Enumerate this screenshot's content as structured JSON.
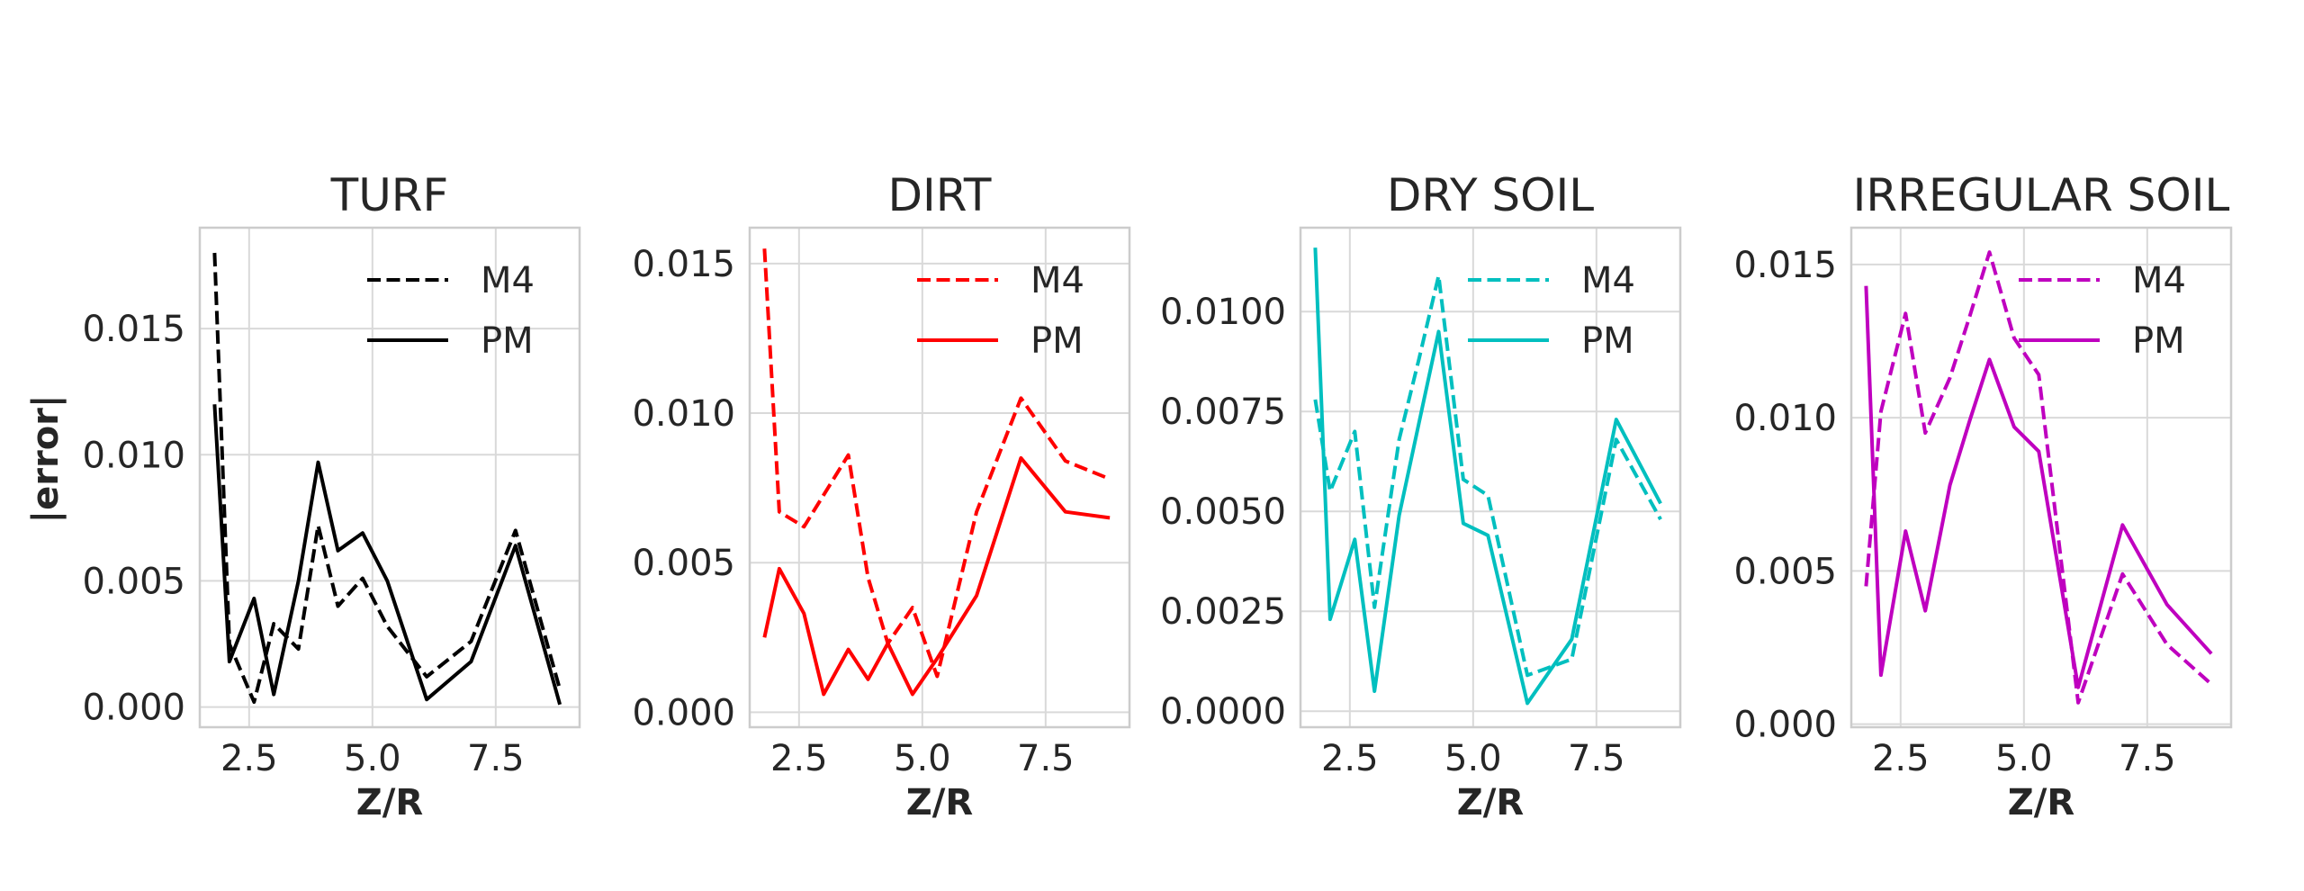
{
  "ylabel": "|error|",
  "chart_data": [
    {
      "type": "line",
      "title": "TURF",
      "xlabel": "Z/R",
      "color": "#000000",
      "xlim": [
        1.5,
        9.2
      ],
      "ylim": [
        -0.0008,
        0.019
      ],
      "xticks": [
        2.5,
        5.0,
        7.5
      ],
      "xticklabels": [
        "2.5",
        "5.0",
        "7.5"
      ],
      "yticks": [
        0.0,
        0.005,
        0.01,
        0.015
      ],
      "yticklabels": [
        "0.000",
        "0.005",
        "0.010",
        "0.015"
      ],
      "legend_position": "top-right",
      "series": [
        {
          "name": "M4",
          "dash": "dashed",
          "x": [
            1.8,
            2.1,
            2.6,
            3.0,
            3.5,
            3.9,
            4.3,
            4.8,
            5.3,
            6.1,
            7.0,
            7.9,
            8.8
          ],
          "y": [
            0.018,
            0.0025,
            0.0002,
            0.0033,
            0.0023,
            0.0072,
            0.004,
            0.0051,
            0.0032,
            0.0012,
            0.0026,
            0.007,
            0.0007
          ]
        },
        {
          "name": "PM",
          "dash": "solid",
          "x": [
            1.8,
            2.1,
            2.6,
            3.0,
            3.5,
            3.9,
            4.3,
            4.8,
            5.3,
            6.1,
            7.0,
            7.9,
            8.8
          ],
          "y": [
            0.012,
            0.0018,
            0.0043,
            0.0005,
            0.005,
            0.0097,
            0.0062,
            0.0069,
            0.005,
            0.0003,
            0.0018,
            0.0064,
            0.0001
          ]
        }
      ]
    },
    {
      "type": "line",
      "title": "DIRT",
      "xlabel": "Z/R",
      "color": "#ff0000",
      "xlim": [
        1.5,
        9.2
      ],
      "ylim": [
        -0.0005,
        0.0162
      ],
      "xticks": [
        2.5,
        5.0,
        7.5
      ],
      "xticklabels": [
        "2.5",
        "5.0",
        "7.5"
      ],
      "yticks": [
        0.0,
        0.005,
        0.01,
        0.015
      ],
      "yticklabels": [
        "0.000",
        "0.005",
        "0.010",
        "0.015"
      ],
      "legend_position": "top-right",
      "series": [
        {
          "name": "M4",
          "dash": "dashed",
          "x": [
            1.8,
            2.1,
            2.6,
            3.5,
            3.9,
            4.3,
            4.8,
            5.3,
            6.1,
            7.0,
            7.9,
            8.8
          ],
          "y": [
            0.0155,
            0.0067,
            0.0062,
            0.0086,
            0.0045,
            0.0023,
            0.0035,
            0.0012,
            0.0067,
            0.0105,
            0.0084,
            0.0078
          ]
        },
        {
          "name": "PM",
          "dash": "solid",
          "x": [
            1.8,
            2.1,
            2.6,
            3.0,
            3.5,
            3.9,
            4.3,
            4.8,
            5.3,
            6.1,
            7.0,
            7.9,
            8.8
          ],
          "y": [
            0.0025,
            0.0048,
            0.0033,
            0.0006,
            0.0021,
            0.0011,
            0.0023,
            0.0006,
            0.0018,
            0.0039,
            0.0085,
            0.0067,
            0.0065
          ]
        }
      ]
    },
    {
      "type": "line",
      "title": "DRY SOIL",
      "xlabel": "Z/R",
      "color": "#00bfbf",
      "xlim": [
        1.5,
        9.2
      ],
      "ylim": [
        -0.0004,
        0.0121
      ],
      "xticks": [
        2.5,
        5.0,
        7.5
      ],
      "xticklabels": [
        "2.5",
        "5.0",
        "7.5"
      ],
      "yticks": [
        0.0,
        0.0025,
        0.005,
        0.0075,
        0.01
      ],
      "yticklabels": [
        "0.0000",
        "0.0025",
        "0.0050",
        "0.0075",
        "0.0100"
      ],
      "legend_position": "top-right",
      "series": [
        {
          "name": "M4",
          "dash": "dashed",
          "x": [
            1.8,
            2.1,
            2.6,
            3.0,
            3.5,
            3.9,
            4.3,
            4.8,
            5.3,
            6.1,
            7.0,
            7.9,
            8.8
          ],
          "y": [
            0.0078,
            0.0055,
            0.007,
            0.0026,
            0.0068,
            0.0088,
            0.0109,
            0.0058,
            0.0054,
            0.0009,
            0.0013,
            0.0068,
            0.0048
          ]
        },
        {
          "name": "PM",
          "dash": "solid",
          "x": [
            1.8,
            2.1,
            2.6,
            3.0,
            3.5,
            3.9,
            4.3,
            4.8,
            5.3,
            6.1,
            7.0,
            7.9,
            8.8
          ],
          "y": [
            0.0116,
            0.0023,
            0.0043,
            0.0005,
            0.0049,
            0.0072,
            0.0095,
            0.0047,
            0.0044,
            0.0002,
            0.0018,
            0.0073,
            0.0052
          ]
        }
      ]
    },
    {
      "type": "line",
      "title": "IRREGULAR SOIL",
      "xlabel": "Z/R",
      "color": "#bf00bf",
      "xlim": [
        1.5,
        9.2
      ],
      "ylim": [
        -0.0001,
        0.0162
      ],
      "xticks": [
        2.5,
        5.0,
        7.5
      ],
      "xticklabels": [
        "2.5",
        "5.0",
        "7.5"
      ],
      "yticks": [
        0.0,
        0.005,
        0.01,
        0.015
      ],
      "yticklabels": [
        "0.000",
        "0.005",
        "0.010",
        "0.015"
      ],
      "legend_position": "top-right",
      "series": [
        {
          "name": "M4",
          "dash": "dashed",
          "x": [
            1.8,
            2.1,
            2.6,
            3.0,
            3.5,
            3.9,
            4.3,
            4.8,
            5.3,
            6.1,
            7.0,
            7.9,
            8.8
          ],
          "y": [
            0.0045,
            0.0102,
            0.0134,
            0.0095,
            0.0113,
            0.0133,
            0.0154,
            0.0126,
            0.0114,
            0.0007,
            0.0049,
            0.0026,
            0.0013
          ]
        },
        {
          "name": "PM",
          "dash": "solid",
          "x": [
            1.8,
            2.1,
            2.6,
            3.0,
            3.5,
            3.9,
            4.3,
            4.8,
            5.3,
            6.1,
            7.0,
            7.9,
            8.8
          ],
          "y": [
            0.0143,
            0.0016,
            0.0063,
            0.0037,
            0.0078,
            0.0099,
            0.0119,
            0.0097,
            0.0089,
            0.0012,
            0.0065,
            0.0039,
            0.0023
          ]
        }
      ]
    }
  ]
}
